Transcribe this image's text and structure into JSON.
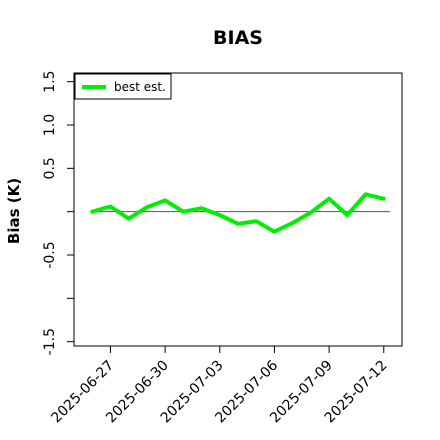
{
  "chart_data": {
    "type": "line",
    "title": "BIAS",
    "xlabel": "",
    "ylabel": "Bias (K)",
    "ylim": [
      -1.55,
      1.6
    ],
    "yticks": [
      -1.5,
      -1.0,
      -0.5,
      0.0,
      0.5,
      1.0,
      1.5
    ],
    "ytick_labels": [
      "-1.5",
      "",
      "-0.5",
      "",
      "0.5",
      "1.0",
      "1.5"
    ],
    "xlim": [
      "2025-06-25",
      "2025-07-13"
    ],
    "xticks": [
      "2025-06-27",
      "2025-06-30",
      "2025-07-03",
      "2025-07-06",
      "2025-07-09",
      "2025-07-12"
    ],
    "reference_line": 0,
    "grid": false,
    "legend_position": "top-left",
    "x": [
      "2025-06-26",
      "2025-06-27",
      "2025-06-28",
      "2025-06-29",
      "2025-06-30",
      "2025-07-01",
      "2025-07-02",
      "2025-07-03",
      "2025-07-04",
      "2025-07-05",
      "2025-07-06",
      "2025-07-07",
      "2025-07-08",
      "2025-07-09",
      "2025-07-10",
      "2025-07-11",
      "2025-07-12"
    ],
    "series": [
      {
        "name": "best est.",
        "color": "#00ee00",
        "values": [
          0.0,
          0.06,
          -0.08,
          0.05,
          0.13,
          0.0,
          0.04,
          -0.04,
          -0.14,
          -0.11,
          -0.23,
          -0.13,
          -0.01,
          0.15,
          -0.04,
          0.2,
          0.15
        ]
      }
    ],
    "reference_color": "#555555"
  }
}
